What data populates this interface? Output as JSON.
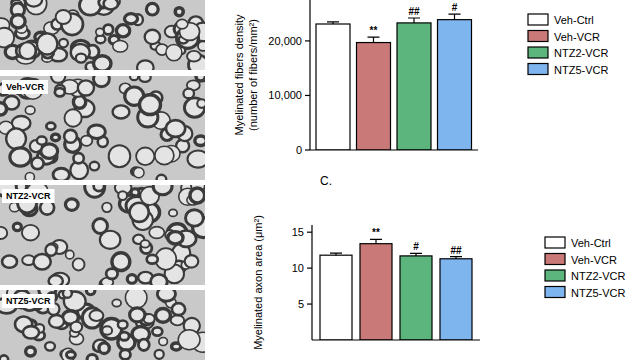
{
  "micrographs": {
    "labels": [
      "Veh-VCR",
      "NTZ2-VCR",
      "NTZ5-VCR"
    ]
  },
  "chart_data": [
    {
      "type": "bar",
      "y_label": "Myelinated fibers density\n(number of fibers/mm²)",
      "categories": [
        "Veh-Ctrl",
        "Veh-VCR",
        "NTZ2-VCR",
        "NTZ5-VCR"
      ],
      "values": [
        23100,
        19700,
        23300,
        23900
      ],
      "errors": [
        400,
        1000,
        900,
        1000
      ],
      "significance": [
        null,
        "**",
        "##",
        "#"
      ],
      "colors": [
        "#ffffff",
        "#c97a78",
        "#5db57e",
        "#7fb5ef"
      ],
      "ylim": [
        0,
        27500
      ],
      "yticks": [
        0,
        {
          "value": 10000,
          "label": "10,000"
        },
        {
          "value": 20000,
          "label": "20,000"
        }
      ],
      "tick_labels": "y",
      "legend": "right",
      "grid": false
    },
    {
      "type": "bar",
      "title": "C.",
      "y_label": "Myelinated axon area (μm²)",
      "categories": [
        "Veh-Ctrl",
        "Veh-VCR",
        "NTZ2-VCR",
        "NTZ5-VCR"
      ],
      "values": [
        11.8,
        13.4,
        11.7,
        11.3
      ],
      "errors": [
        0.3,
        0.6,
        0.35,
        0.3
      ],
      "significance": [
        null,
        "**",
        "#",
        "##"
      ],
      "colors": [
        "#ffffff",
        "#c97a78",
        "#5db57e",
        "#7fb5ef"
      ],
      "ylim": [
        0,
        16
      ],
      "yticks": [
        5,
        10,
        15
      ],
      "tick_labels": "y",
      "legend": "right",
      "grid": false
    }
  ]
}
